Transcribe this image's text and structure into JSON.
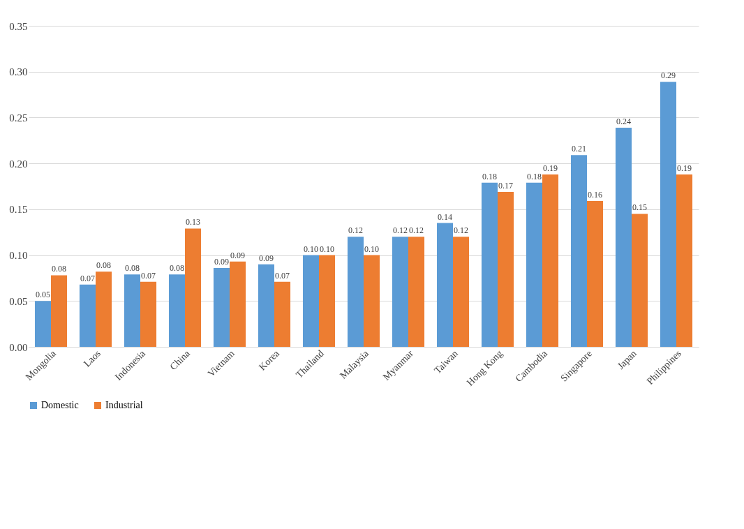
{
  "chart_data": {
    "type": "bar",
    "categories": [
      "Mongolia",
      "Laos",
      "Indonesia",
      "China",
      "Vietnam",
      "Korea",
      "Thailand",
      "Malaysia",
      "Myanmar",
      "Taiwan",
      "Hong Kong",
      "Cambodia",
      "Singapore",
      "Japan",
      "Philippines"
    ],
    "series": [
      {
        "name": "Domestic",
        "color": "#5b9bd5",
        "values": [
          0.05,
          0.068,
          0.079,
          0.079,
          0.086,
          0.09,
          0.1,
          0.12,
          0.12,
          0.135,
          0.179,
          0.179,
          0.209,
          0.239,
          0.289
        ],
        "value_labels": [
          "0.05",
          "0.07",
          "0.08",
          "0.08",
          "0.09",
          "0.09",
          "0.10",
          "0.12",
          "0.12",
          "0.14",
          "0.18",
          "0.18",
          "0.21",
          "0.24",
          "0.29"
        ]
      },
      {
        "name": "Industrial",
        "color": "#ed7d31",
        "values": [
          0.078,
          0.082,
          0.071,
          0.129,
          0.093,
          0.071,
          0.1,
          0.1,
          0.12,
          0.12,
          0.169,
          0.188,
          0.159,
          0.145,
          0.188
        ],
        "value_labels": [
          "0.08",
          "0.08",
          "0.07",
          "0.13",
          "0.09",
          "0.07",
          "0.10",
          "0.10",
          "0.12",
          "0.12",
          "0.17",
          "0.19",
          "0.16",
          "0.15",
          "0.19"
        ]
      }
    ],
    "ylim": [
      0,
      0.35
    ],
    "yticks": [
      {
        "value": 0,
        "label": "0.00"
      },
      {
        "value": 0.05,
        "label": "0.05"
      },
      {
        "value": 0.1,
        "label": "0.10"
      },
      {
        "value": 0.15,
        "label": "0.15"
      },
      {
        "value": 0.2,
        "label": "0.20"
      },
      {
        "value": 0.25,
        "label": "0.25"
      },
      {
        "value": 0.3,
        "label": "0.30"
      },
      {
        "value": 0.35,
        "label": "0.35"
      }
    ],
    "grid": "y",
    "legend": "bottom"
  }
}
